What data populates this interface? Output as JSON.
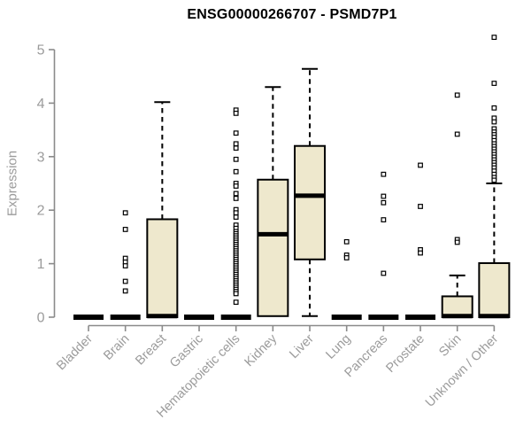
{
  "title": "ENSG00000266707 - PSMD7P1",
  "chart_data": {
    "type": "boxplot",
    "title": "ENSG00000266707 - PSMD7P1",
    "xlabel": "",
    "ylabel": "Expression",
    "ylim": [
      0,
      5.3
    ],
    "yticks": [
      0,
      1,
      2,
      3,
      4,
      5
    ],
    "grid": false,
    "categories": [
      "Bladder",
      "Brain",
      "Breast",
      "Gastric",
      "Hematopoietic cells",
      "Kidney",
      "Liver",
      "Lung",
      "Pancreas",
      "Prostate",
      "Skin",
      "Unknown / Other"
    ],
    "boxes": [
      {
        "category": "Bladder",
        "q1": 0,
        "median": 0,
        "q3": 0,
        "whisker_low": null,
        "whisker_high": null,
        "outliers": []
      },
      {
        "category": "Brain",
        "q1": 0,
        "median": 0,
        "q3": 0,
        "whisker_low": null,
        "whisker_high": null,
        "outliers": [
          1.95,
          1.64,
          1.1,
          1.03,
          0.96,
          0.67,
          0.49
        ]
      },
      {
        "category": "Breast",
        "q1": 0,
        "median": 0.02,
        "q3": 1.83,
        "whisker_low": null,
        "whisker_high": 4.02,
        "outliers": []
      },
      {
        "category": "Gastric",
        "q1": 0,
        "median": 0,
        "q3": 0,
        "whisker_low": null,
        "whisker_high": null,
        "outliers": []
      },
      {
        "category": "Hematopoietic cells",
        "q1": 0,
        "median": 0,
        "q3": 0,
        "whisker_low": null,
        "whisker_high": null,
        "outliers": [
          3.87,
          3.81,
          3.44,
          3.24,
          3.16,
          2.95,
          2.72,
          2.5,
          2.45,
          2.31,
          2.22,
          2.01,
          1.95,
          1.87,
          1.72,
          1.66,
          1.6,
          1.56,
          1.52,
          1.48,
          1.44,
          1.4,
          1.36,
          1.32,
          1.28,
          1.24,
          1.2,
          1.16,
          1.12,
          1.08,
          1.04,
          1.0,
          0.96,
          0.92,
          0.88,
          0.84,
          0.8,
          0.76,
          0.72,
          0.68,
          0.64,
          0.6,
          0.56,
          0.52,
          0.48,
          0.44,
          0.28
        ]
      },
      {
        "category": "Kidney",
        "q1": 0.02,
        "median": 1.55,
        "q3": 2.57,
        "whisker_low": null,
        "whisker_high": 4.3,
        "outliers": []
      },
      {
        "category": "Liver",
        "q1": 1.08,
        "median": 2.27,
        "q3": 3.2,
        "whisker_low": 0.02,
        "whisker_high": 4.64,
        "outliers": []
      },
      {
        "category": "Lung",
        "q1": 0,
        "median": 0,
        "q3": 0,
        "whisker_low": null,
        "whisker_high": null,
        "outliers": [
          1.41,
          1.16,
          1.11
        ]
      },
      {
        "category": "Pancreas",
        "q1": 0,
        "median": 0,
        "q3": 0,
        "whisker_low": null,
        "whisker_high": null,
        "outliers": [
          2.67,
          2.26,
          2.14,
          1.82,
          0.82
        ]
      },
      {
        "category": "Prostate",
        "q1": 0,
        "median": 0,
        "q3": 0,
        "whisker_low": null,
        "whisker_high": null,
        "outliers": [
          2.84,
          2.07,
          1.26,
          1.2
        ]
      },
      {
        "category": "Skin",
        "q1": 0,
        "median": 0.02,
        "q3": 0.39,
        "whisker_low": null,
        "whisker_high": 0.78,
        "outliers": [
          4.15,
          3.42,
          1.45,
          1.4
        ]
      },
      {
        "category": "Unknown / Other",
        "q1": 0,
        "median": 0.02,
        "q3": 1.01,
        "whisker_low": null,
        "whisker_high": 2.5,
        "outliers": [
          5.23,
          4.37,
          3.91,
          3.72,
          3.65,
          3.52,
          3.46,
          3.41,
          3.36,
          3.3,
          3.24,
          3.19,
          3.14,
          3.09,
          3.04,
          2.99,
          2.94,
          2.89,
          2.84,
          2.79,
          2.73,
          2.67,
          2.61,
          2.56
        ]
      }
    ],
    "colors": {
      "box_fill": "#EEE8CD",
      "box_border": "#000000",
      "median": "#000000",
      "whisker": "#000000",
      "outlier_stroke": "#000000",
      "outlier_fill": "#FFFFFF",
      "axis_line": "#8a8a8a",
      "axis_text": "#9b9b9b",
      "title_text": "#000000",
      "background": "#FFFFFF"
    }
  }
}
